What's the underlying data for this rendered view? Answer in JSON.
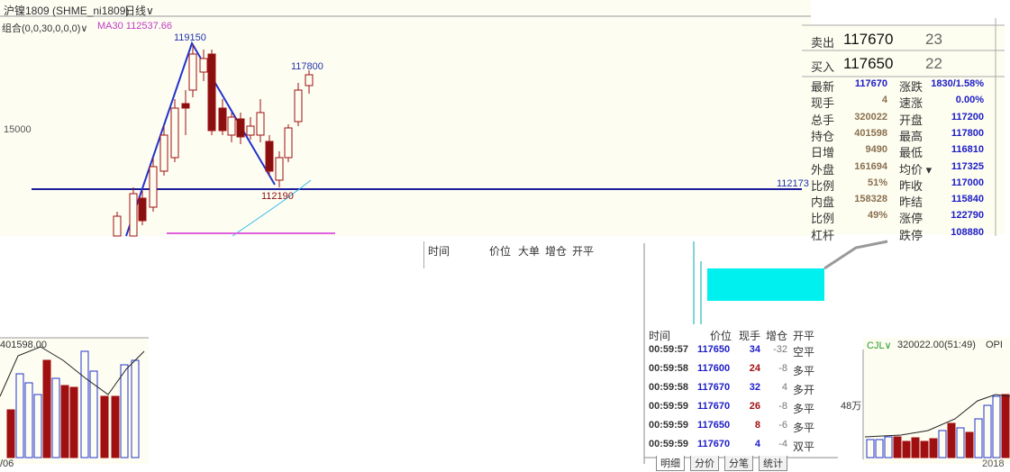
{
  "header": {
    "symbol": "沪镍1809 (SHME_ni1809)",
    "period": "日线∨"
  },
  "indicator": {
    "combo": "组合(0,0,30,0,0,0)∨",
    "ma": "MA30 112537.66"
  },
  "price_labels": {
    "high": "119150",
    "last_high": "117800",
    "low": "112190",
    "line": "112173",
    "axis": "15000"
  },
  "quote": {
    "sell": {
      "label": "卖出",
      "price": "117670",
      "qty": "23"
    },
    "buy": {
      "label": "买入",
      "price": "117650",
      "qty": "22"
    },
    "rows": [
      [
        "最新",
        "117670",
        "涨跌",
        "1830/1.58%"
      ],
      [
        "现手",
        "4",
        "速涨",
        "0.00%"
      ],
      [
        "总手",
        "320022",
        "开盘",
        "117200"
      ],
      [
        "持仓",
        "401598",
        "最高",
        "117800"
      ],
      [
        "日增",
        "9490",
        "最低",
        "116810"
      ],
      [
        "外盘",
        "161694",
        "均价 ▾",
        "117325"
      ],
      [
        "比例",
        "51%",
        "昨收",
        "117000"
      ],
      [
        "内盘",
        "158328",
        "昨结",
        "115840"
      ],
      [
        "比例",
        "49%",
        "涨停",
        "122790"
      ],
      [
        "杠杆",
        "",
        "跌停",
        "108880"
      ]
    ]
  },
  "small_table": {
    "headers": [
      "时间",
      "价位",
      "大单",
      "增仓",
      "开平"
    ]
  },
  "trades": {
    "headers": [
      "时间",
      "价位",
      "现手",
      "增仓",
      "开平"
    ],
    "rows": [
      [
        "00:59:57",
        "117650",
        "34",
        "-32",
        "空平"
      ],
      [
        "00:59:58",
        "117600",
        "24",
        "-8",
        "多平"
      ],
      [
        "00:59:58",
        "117670",
        "32",
        "4",
        "多开"
      ],
      [
        "00:59:59",
        "117670",
        "26",
        "-8",
        "多平"
      ],
      [
        "00:59:59",
        "117650",
        "8",
        "-6",
        "多平"
      ],
      [
        "00:59:59",
        "117670",
        "4",
        "-4",
        "双平"
      ]
    ]
  },
  "tabs": [
    "明细",
    "分价",
    "分笔",
    "统计"
  ],
  "volume": {
    "label": "401598.00",
    "date": "/06"
  },
  "mini": {
    "label": "CJL∨",
    "value": "320022.00(51:49)",
    "opi": "OPI",
    "axis": "48万",
    "year": "2018"
  }
}
